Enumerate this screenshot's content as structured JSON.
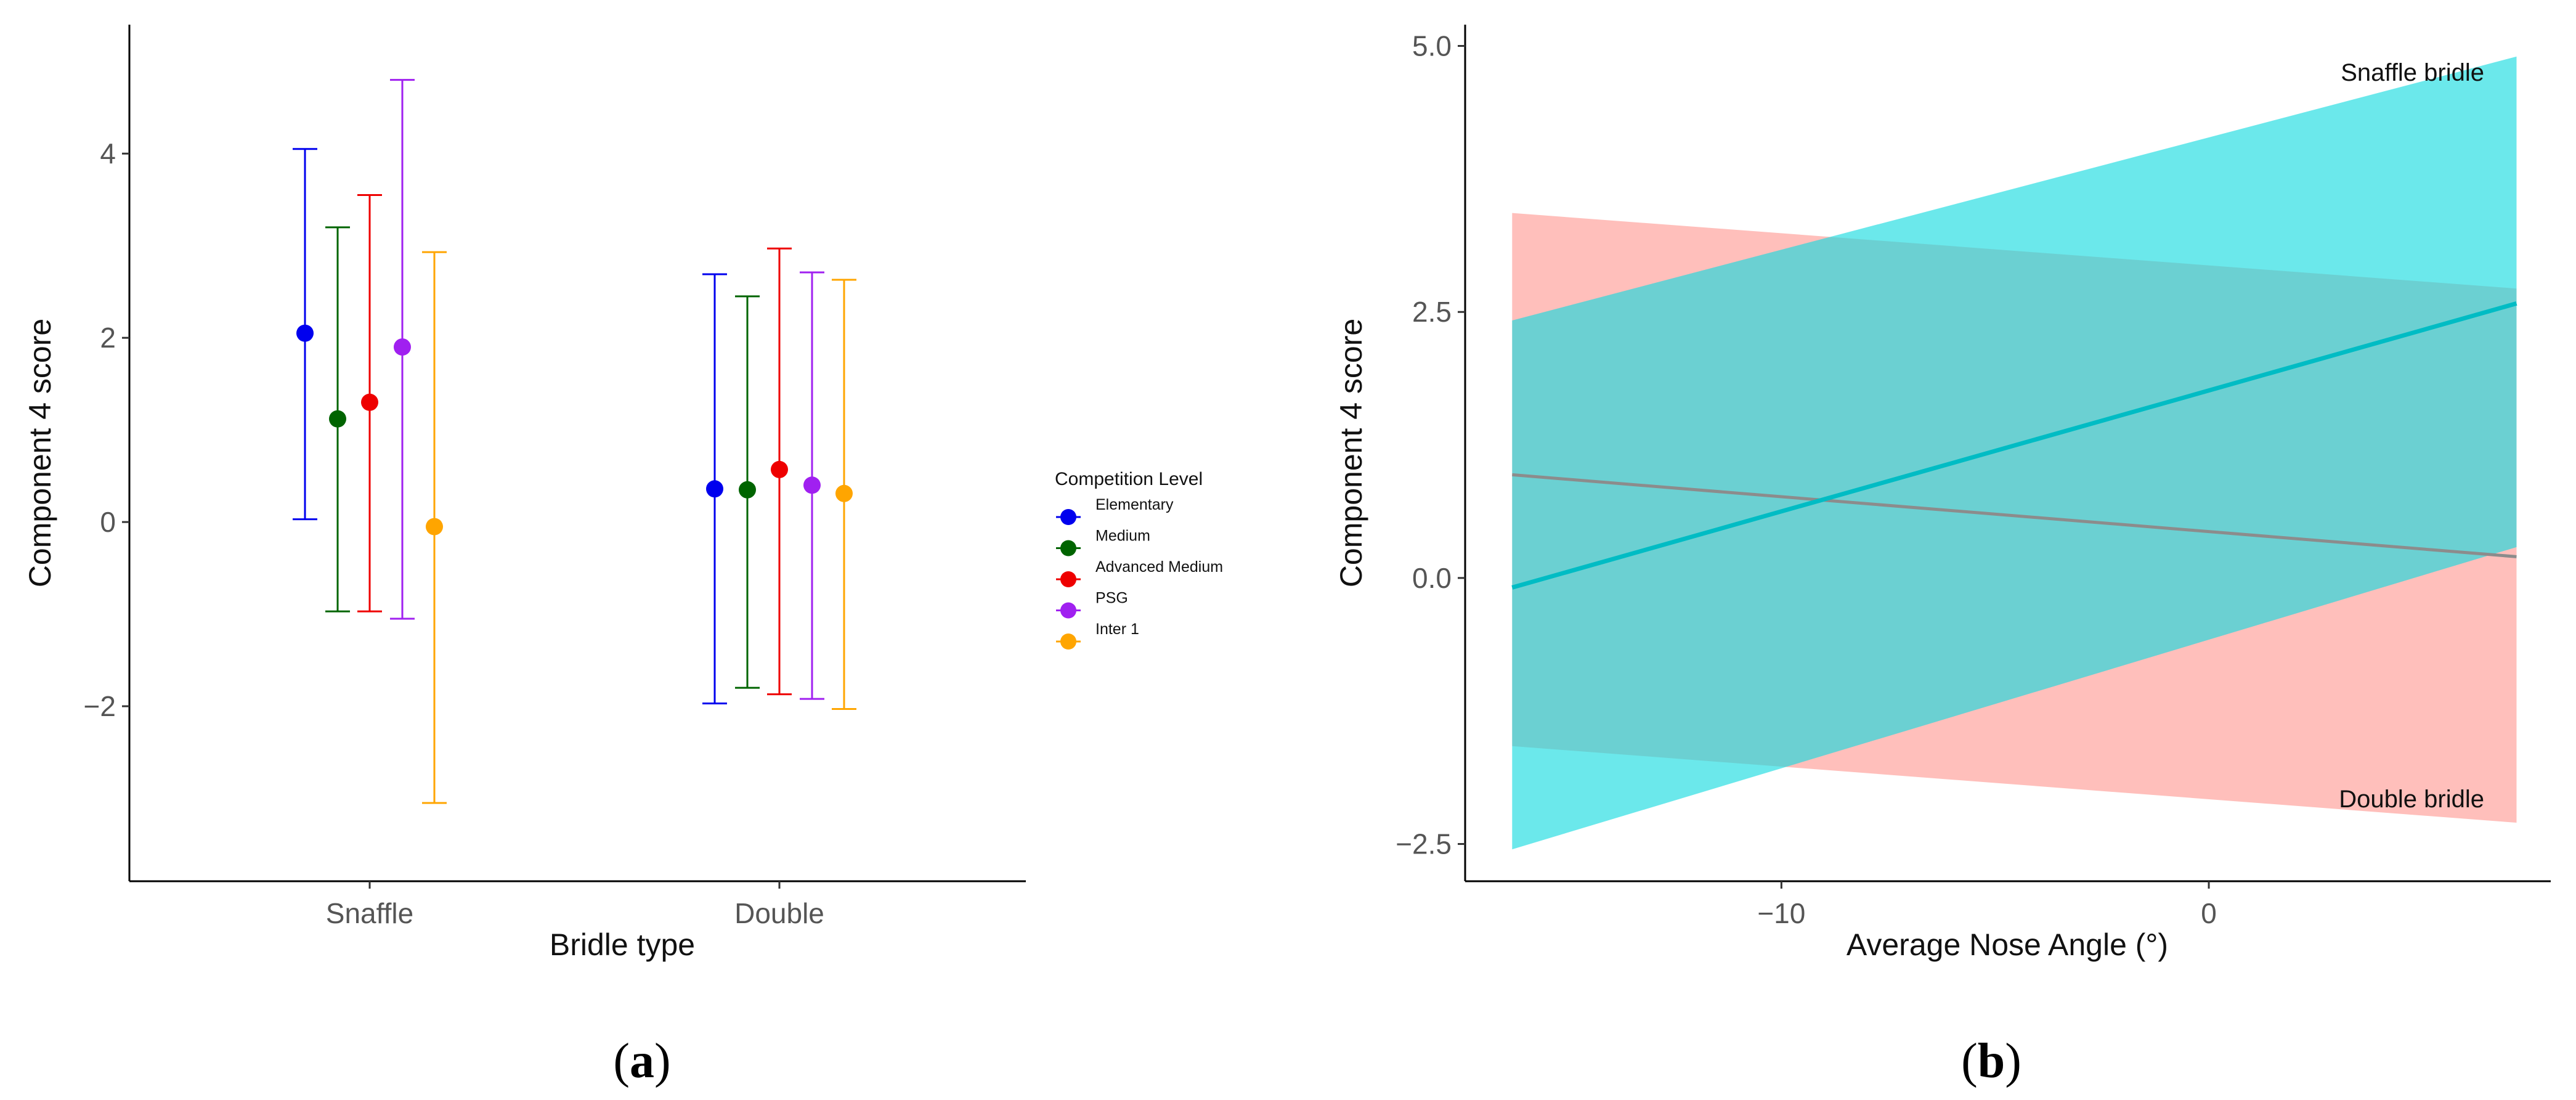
{
  "chart_data": [
    {
      "panel": "(a)",
      "type": "scatter",
      "title": "",
      "xlabel": "Bridle type",
      "ylabel": "Component 4 score",
      "categories": [
        "Snaffle",
        "Double"
      ],
      "ylim": [
        -3.9,
        5.4
      ],
      "yticks": [
        4,
        2,
        0,
        -2
      ],
      "ytick_labels": [
        "4",
        "2",
        "0",
        "−2"
      ],
      "legend": {
        "title": "Competition Level",
        "position": "right"
      },
      "series": [
        {
          "name": "Elementary",
          "color": "#0000ee",
          "points": [
            {
              "category": "Snaffle",
              "mean": 2.05,
              "lower": 0.03,
              "upper": 4.05
            },
            {
              "category": "Double",
              "mean": 0.36,
              "lower": -1.97,
              "upper": 2.69
            }
          ]
        },
        {
          "name": "Medium",
          "color": "#006400",
          "points": [
            {
              "category": "Snaffle",
              "mean": 1.12,
              "lower": -0.97,
              "upper": 3.2
            },
            {
              "category": "Double",
              "mean": 0.35,
              "lower": -1.8,
              "upper": 2.45
            }
          ]
        },
        {
          "name": "Advanced Medium",
          "color": "#ee0000",
          "points": [
            {
              "category": "Snaffle",
              "mean": 1.3,
              "lower": -0.97,
              "upper": 3.55
            },
            {
              "category": "Double",
              "mean": 0.57,
              "lower": -1.87,
              "upper": 2.97
            }
          ]
        },
        {
          "name": "PSG",
          "color": "#a020f0",
          "points": [
            {
              "category": "Snaffle",
              "mean": 1.9,
              "lower": -1.05,
              "upper": 4.8
            },
            {
              "category": "Double",
              "mean": 0.4,
              "lower": -1.92,
              "upper": 2.71
            }
          ]
        },
        {
          "name": "Inter 1",
          "color": "#ffa500",
          "points": [
            {
              "category": "Snaffle",
              "mean": -0.05,
              "lower": -3.05,
              "upper": 2.93
            },
            {
              "category": "Double",
              "mean": 0.31,
              "lower": -2.03,
              "upper": 2.63
            }
          ]
        }
      ]
    },
    {
      "panel": "(b)",
      "type": "line",
      "title": "",
      "xlabel": "Average Nose Angle (°)",
      "ylabel": "Component 4 score",
      "xlim": [
        -17.4,
        8.0
      ],
      "ylim": [
        -2.85,
        5.2
      ],
      "xticks": [
        -10,
        0
      ],
      "xtick_labels": [
        "−10",
        "0"
      ],
      "yticks": [
        5.0,
        2.5,
        0.0,
        -2.5
      ],
      "ytick_labels": [
        "5.0",
        "2.5",
        "0.0",
        "−2.5"
      ],
      "series": [
        {
          "name": "Double bridle",
          "color": "#8c8c8c",
          "band_color": "#ff9a94",
          "x": [
            -16.3,
            7.2
          ],
          "y": [
            0.97,
            0.2
          ],
          "ci_lower": [
            -1.58,
            -2.3
          ],
          "ci_upper": [
            3.43,
            2.72
          ]
        },
        {
          "name": "Snaffle bridle",
          "color": "#00bcc4",
          "band_color": "#14dadf",
          "x": [
            -16.3,
            7.2
          ],
          "y": [
            -0.09,
            2.58
          ],
          "ci_lower": [
            -2.55,
            0.29
          ],
          "ci_upper": [
            2.42,
            4.9
          ]
        }
      ],
      "annotations": [
        {
          "text": "Snaffle bridle",
          "anchor": "top-right"
        },
        {
          "text": "Double bridle",
          "anchor": "bottom-right"
        }
      ]
    }
  ]
}
